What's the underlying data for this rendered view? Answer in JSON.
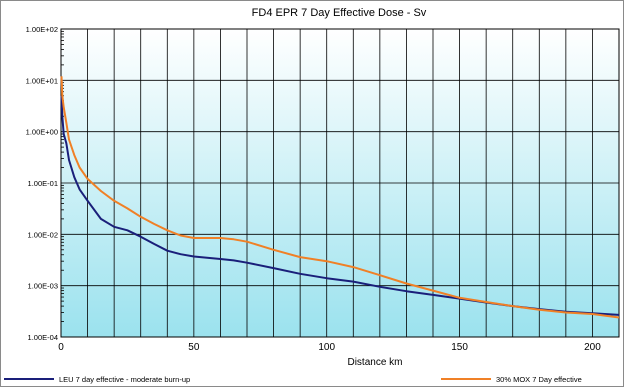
{
  "chart_data": {
    "type": "line",
    "title": "FD4 EPR 7 Day Effective Dose - Sv",
    "xlabel": "Distance km",
    "ylabel": "",
    "xlim": [
      0,
      210
    ],
    "ylim": [
      0.0001,
      100
    ],
    "yscale": "log",
    "grid": true,
    "legend_position": "bottom",
    "x_ticks": [
      0,
      50,
      100,
      150,
      200
    ],
    "x_tick_labels": [
      "0",
      "50",
      "100",
      "150",
      "200"
    ],
    "y_ticks": [
      0.0001,
      0.001,
      0.01,
      0.1,
      1,
      10,
      100
    ],
    "y_tick_labels": [
      "1.00E-04",
      "1.00E-03",
      "1.00E-02",
      "1.00E-01",
      "1.00E+00",
      "1.00E+01",
      "1.00E+02"
    ],
    "series": [
      {
        "name": "LEU 7 day effective - moderate burn-up",
        "color": "#1a1f7a",
        "x": [
          0.2,
          0.5,
          1,
          2,
          3,
          5,
          7,
          10,
          15,
          20,
          25,
          30,
          35,
          40,
          45,
          50,
          55,
          60,
          65,
          70,
          80,
          90,
          100,
          110,
          120,
          130,
          140,
          150,
          160,
          170,
          180,
          190,
          200,
          210
        ],
        "y": [
          5.0,
          2.0,
          0.9,
          0.6,
          0.28,
          0.13,
          0.075,
          0.045,
          0.02,
          0.014,
          0.012,
          0.009,
          0.0065,
          0.0048,
          0.0041,
          0.0037,
          0.0035,
          0.0033,
          0.0031,
          0.0028,
          0.0022,
          0.0017,
          0.0014,
          0.0012,
          0.00095,
          0.00078,
          0.00066,
          0.00056,
          0.00047,
          0.0004,
          0.00035,
          0.00031,
          0.00029,
          0.00027
        ]
      },
      {
        "name": "30% MOX 7 Day effective",
        "color": "#f08026",
        "x": [
          0.2,
          0.5,
          1,
          2,
          3,
          5,
          7,
          10,
          15,
          20,
          25,
          30,
          35,
          40,
          45,
          50,
          55,
          60,
          65,
          70,
          80,
          90,
          100,
          110,
          120,
          130,
          140,
          150,
          160,
          170,
          180,
          190,
          200,
          210
        ],
        "y": [
          12,
          5.0,
          3.0,
          1.5,
          0.7,
          0.35,
          0.2,
          0.12,
          0.07,
          0.045,
          0.032,
          0.022,
          0.016,
          0.012,
          0.0095,
          0.0085,
          0.0085,
          0.0085,
          0.008,
          0.0072,
          0.005,
          0.0036,
          0.003,
          0.0023,
          0.0016,
          0.0011,
          0.0008,
          0.00058,
          0.00048,
          0.0004,
          0.00034,
          0.0003,
          0.00028,
          0.00024
        ]
      }
    ]
  }
}
